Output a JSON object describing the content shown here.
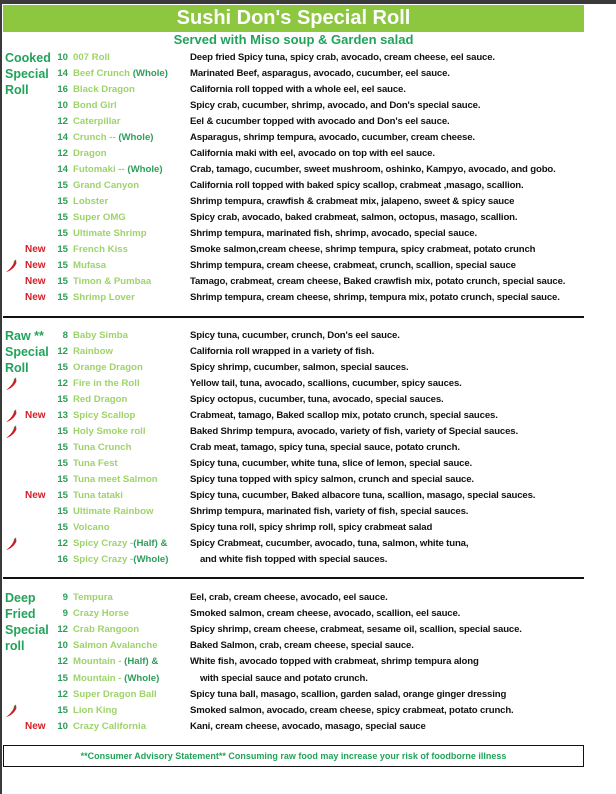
{
  "title": "Sushi Don's Special Roll",
  "subtitle": "Served with Miso soup & Garden salad",
  "colors": {
    "title_bg": "#8dc63f",
    "label_green": "#22a35a",
    "name_green": "#9ed36a",
    "new_red": "#d32027"
  },
  "sections": [
    {
      "label": [
        "Cooked",
        "Special",
        "Roll"
      ],
      "items": [
        {
          "price": "10",
          "name": "007 Roll",
          "desc": "Deep fried Spicy tuna, spicy crab, avocado, cream cheese, eel sauce."
        },
        {
          "price": "14",
          "name": "Beef Crunch ",
          "suffix": "(Whole)",
          "desc": "Marinated Beef, asparagus, avocado, cucumber, eel sauce."
        },
        {
          "price": "16",
          "name": "Black Dragon",
          "desc": "California roll topped with a whole eel, eel sauce."
        },
        {
          "price": "10",
          "name": "Bond Girl",
          "desc": "Spicy crab, cucumber, shrimp, avocado, and Don's special sauce."
        },
        {
          "price": "12",
          "name": "Caterpillar",
          "desc": "Eel & cucumber topped with avocado and Don's eel sauce."
        },
        {
          "price": "14",
          "name": "Crunch -- ",
          "suffix": "(Whole)",
          "desc": "Asparagus, shrimp tempura, avocado, cucumber, cream cheese."
        },
        {
          "price": "12",
          "name": "Dragon",
          "desc": "California maki with eel, avocado on top with eel sauce."
        },
        {
          "price": "14",
          "name": "Futomaki -- ",
          "suffix": "(Whole)",
          "desc": "Crab, tamago, cucumber, sweet mushroom, oshinko, Kampyo, avocado, and gobo."
        },
        {
          "price": "15",
          "name": "Grand Canyon",
          "desc": "California roll topped with baked spicy scallop, crabmeat ,masago, scallion."
        },
        {
          "price": "15",
          "name": "Lobster",
          "desc": "Shrimp tempura, crawfish & crabmeat mix, jalapeno, sweet & spicy sauce"
        },
        {
          "price": "15",
          "name": "Super OMG",
          "desc": "Spicy crab, avocado, baked crabmeat, salmon, octopus, masago, scallion."
        },
        {
          "price": "15",
          "name": "Ultimate Shrimp",
          "desc": "Shrimp tempura, marinated fish, shrimp, avocado, special sauce."
        },
        {
          "new": "New",
          "price": "15",
          "name": "French Kiss",
          "desc": "Smoke salmon,cream cheese, shrimp tempura, spicy crabmeat, potato crunch"
        },
        {
          "new": "New",
          "spicy": true,
          "price": "15",
          "name": "Mufasa",
          "desc": "Shrimp tempura, cream cheese, crabmeat, crunch, scallion, special sauce"
        },
        {
          "new": "New",
          "price": "15",
          "name": "Timon & Pumbaa",
          "desc": "Tamago, crabmeat, cream cheese, Baked crawfish mix, potato crunch, special sauce."
        },
        {
          "new": "New",
          "price": "15",
          "name": "Shrimp Lover",
          "desc": "Shrimp tempura, cream cheese, shrimp, tempura mix, potato crunch, special sauce."
        }
      ]
    },
    {
      "label": [
        "Raw **",
        "Special",
        "Roll"
      ],
      "items": [
        {
          "price": "8",
          "name": "Baby Simba",
          "desc": "Spicy tuna, cucumber, crunch, Don's eel sauce."
        },
        {
          "price": "12",
          "name": "Rainbow",
          "desc": "California roll wrapped in a variety of fish."
        },
        {
          "price": "15",
          "name": "Orange Dragon",
          "desc": "Spicy shrimp, cucumber, salmon, special sauces."
        },
        {
          "spicy": true,
          "price": "12",
          "name": "Fire in the Roll",
          "desc": "Yellow tail, tuna, avocado, scallions, cucumber, spicy sauces."
        },
        {
          "price": "15",
          "name": "Red Dragon",
          "desc": "Spicy octopus, cucumber, tuna, avocado, special sauces."
        },
        {
          "new": "New",
          "spicy": true,
          "price": "13",
          "name": "Spicy Scallop",
          "desc": "Crabmeat, tamago, Baked scallop mix, potato crunch, special sauces."
        },
        {
          "spicy": true,
          "price": "15",
          "name": "Holy Smoke roll",
          "desc": "Baked Shrimp tempura, avocado, variety of fish, variety of Special sauces."
        },
        {
          "price": "15",
          "name": "Tuna Crunch",
          "desc": "Crab meat, tamago, spicy tuna, special sauce, potato crunch."
        },
        {
          "price": "15",
          "name": "Tuna Fest",
          "desc": "Spicy tuna, cucumber, white tuna, slice of lemon, special sauce."
        },
        {
          "price": "15",
          "name": "Tuna meet Salmon",
          "desc": "Spicy tuna topped with spicy salmon, crunch and special sauce."
        },
        {
          "new": "New",
          "price": "15",
          "name": "Tuna tataki",
          "desc": "Spicy tuna, cucumber, Baked albacore tuna, scallion, masago, special sauces."
        },
        {
          "price": "15",
          "name": "Ultimate Rainbow",
          "desc": "Shrimp tempura, marinated fish, variety of fish, special sauces."
        },
        {
          "price": "15",
          "name": "Volcano",
          "desc": "Spicy tuna roll, spicy shrimp roll, spicy crabmeat salad"
        },
        {
          "spicy": true,
          "price": "12",
          "name": "Spicy Crazy -",
          "suffix": "(Half) &",
          "desc": "Spicy Crabmeat, cucumber, avocado, tuna, salmon, white tuna,"
        },
        {
          "price": "16",
          "name": "Spicy Crazy -",
          "suffix": "(Whole)",
          "desc": "and white fish topped with special sauces.",
          "indent": true
        }
      ]
    },
    {
      "label": [
        "Deep",
        "Fried",
        "Special",
        "roll"
      ],
      "items": [
        {
          "price": "9",
          "name": "Tempura",
          "desc": "Eel, crab, cream cheese, avocado, eel sauce."
        },
        {
          "price": "9",
          "name": "Crazy Horse",
          "desc": "Smoked salmon, cream cheese, avocado, scallion, eel sauce."
        },
        {
          "price": "12",
          "name": "Crab Rangoon",
          "desc": "Spicy shrimp, cream cheese, crabmeat, sesame oil, scallion, special sauce."
        },
        {
          "price": "10",
          "name": "Salmon Avalanche",
          "desc": "Baked Salmon, crab, cream cheese, special sauce."
        },
        {
          "price": "12",
          "name": "Mountain - ",
          "suffix": "(Half) &",
          "desc": "White fish, avocado topped with crabmeat, shrimp tempura along"
        },
        {
          "price": "15",
          "name": "Mountain - ",
          "suffix": "(Whole)",
          "desc": "with special sauce and potato crunch.",
          "indent": true
        },
        {
          "price": "12",
          "name": "Super Dragon Ball",
          "desc": "Spicy tuna ball, masago, scallion, garden salad, orange ginger dressing"
        },
        {
          "spicy": true,
          "price": "15",
          "name": "Lion King",
          "desc": "Smoked salmon, avocado, cream cheese, spicy crabmeat, potato crunch."
        },
        {
          "new": "New",
          "price": "10",
          "name": "Crazy California",
          "desc": "Kani, cream cheese, avocado, masago, special sauce"
        }
      ]
    }
  ],
  "advisory": "**Consumer Advisory Statement** Consuming raw food may increase your risk of foodborne illness"
}
